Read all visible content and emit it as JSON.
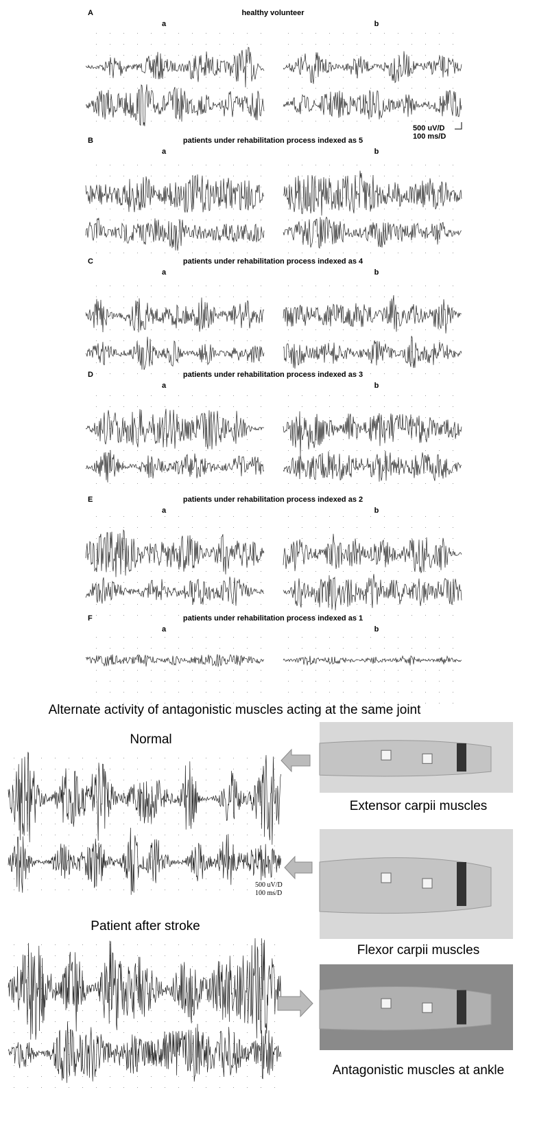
{
  "panels": [
    {
      "letter": "A",
      "title": "healthy volunteer",
      "left": "a",
      "right": "b"
    },
    {
      "letter": "B",
      "title": "patients under rehabilitation process indexed as 5",
      "left": "a",
      "right": "b"
    },
    {
      "letter": "C",
      "title": "patients under rehabilitation process indexed as 4",
      "left": "a",
      "right": "b"
    },
    {
      "letter": "D",
      "title": "patients under rehabilitation process indexed as 3",
      "left": "a",
      "right": "b"
    },
    {
      "letter": "E",
      "title": "patients under rehabilitation process indexed as 2",
      "left": "a",
      "right": "b"
    },
    {
      "letter": "F",
      "title": "patients under rehabilitation process indexed as 1",
      "left": "a",
      "right": "b"
    }
  ],
  "scale": {
    "amplitude": "500 uV/D",
    "time": "100 ms/D"
  },
  "figure2": {
    "title": "Alternate activity of antagonistic muscles acting at the same joint",
    "normal": "Normal",
    "stroke": "Patient after stroke",
    "scale": {
      "amplitude": "500 uV/D",
      "time": "100 ms/D"
    },
    "photos": [
      {
        "caption": "Extensor carpii muscles"
      },
      {
        "caption": "Flexor carpii muscles"
      },
      {
        "caption": "Antagonistic muscles at ankle"
      }
    ]
  }
}
